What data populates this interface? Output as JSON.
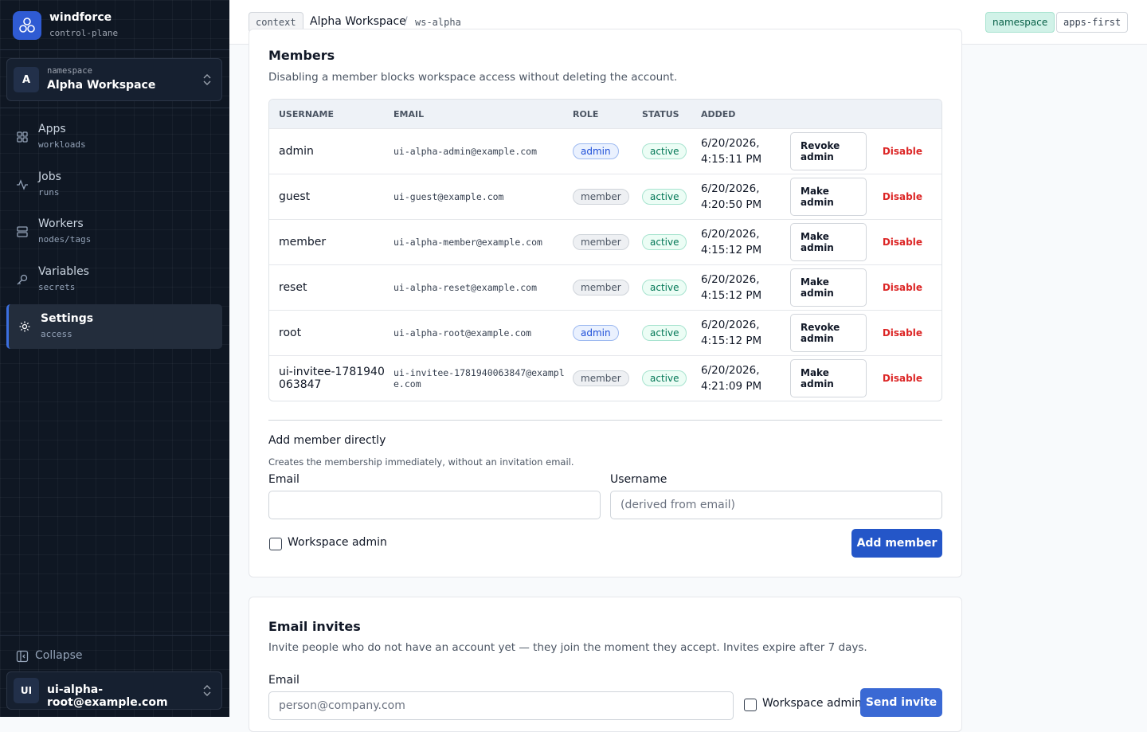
{
  "sidebar": {
    "brand": {
      "name": "windforce",
      "sub": "control-plane"
    },
    "namespace": {
      "avatar": "A",
      "label": "namespace",
      "name": "Alpha Workspace"
    },
    "nav": [
      {
        "label": "Apps",
        "sub": "workloads"
      },
      {
        "label": "Jobs",
        "sub": "runs"
      },
      {
        "label": "Workers",
        "sub": "nodes/tags"
      },
      {
        "label": "Variables",
        "sub": "secrets"
      },
      {
        "label": "Settings",
        "sub": "access"
      }
    ],
    "collapse": "Collapse",
    "user": {
      "avatar": "UI",
      "email": "ui-alpha-root@example.com"
    }
  },
  "topbar": {
    "context": "context",
    "workspace": "Alpha Workspace",
    "separator": "/",
    "slug": "ws-alpha",
    "badges": [
      "namespace",
      "apps-first"
    ]
  },
  "members": {
    "title": "Members",
    "description": "Disabling a member blocks workspace access without deleting the account.",
    "columns": [
      "USERNAME",
      "EMAIL",
      "ROLE",
      "STATUS",
      "ADDED"
    ],
    "rows": [
      {
        "username": "admin",
        "email": "ui-alpha-admin@example.com",
        "role": "admin",
        "status": "active",
        "added": "6/20/2026, 4:15:11 PM",
        "action": "Revoke admin",
        "disable": "Disable"
      },
      {
        "username": "guest",
        "email": "ui-guest@example.com",
        "role": "member",
        "status": "active",
        "added": "6/20/2026, 4:20:50 PM",
        "action": "Make admin",
        "disable": "Disable"
      },
      {
        "username": "member",
        "email": "ui-alpha-member@example.com",
        "role": "member",
        "status": "active",
        "added": "6/20/2026, 4:15:12 PM",
        "action": "Make admin",
        "disable": "Disable"
      },
      {
        "username": "reset",
        "email": "ui-alpha-reset@example.com",
        "role": "member",
        "status": "active",
        "added": "6/20/2026, 4:15:12 PM",
        "action": "Make admin",
        "disable": "Disable"
      },
      {
        "username": "root",
        "email": "ui-alpha-root@example.com",
        "role": "admin",
        "status": "active",
        "added": "6/20/2026, 4:15:12 PM",
        "action": "Revoke admin",
        "disable": "Disable"
      },
      {
        "username": "ui-invitee-1781940063847",
        "email": "ui-invitee-1781940063847@example.com",
        "role": "member",
        "status": "active",
        "added": "6/20/2026, 4:21:09 PM",
        "action": "Make admin",
        "disable": "Disable"
      }
    ]
  },
  "add_member": {
    "title": "Add member directly",
    "description": "Creates the membership immediately, without an invitation email.",
    "email_label": "Email",
    "username_label": "Username",
    "username_placeholder": "(derived from email)",
    "admin_label": "Workspace admin",
    "button": "Add member"
  },
  "invites": {
    "title": "Email invites",
    "description": "Invite people who do not have an account yet — they join the moment they accept. Invites expire after 7 days.",
    "email_label": "Email",
    "email_placeholder": "person@company.com",
    "admin_label": "Workspace admin",
    "button": "Send invite"
  }
}
